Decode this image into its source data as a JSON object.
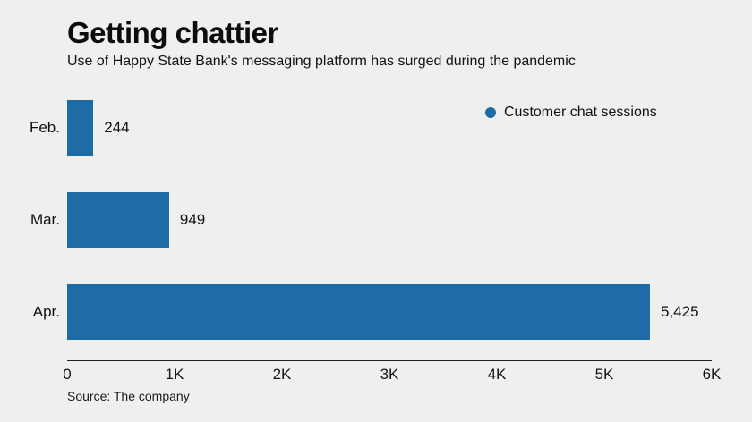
{
  "header": {
    "title": "Getting chattier",
    "subtitle": "Use of Happy State Bank's messaging platform has surged during the pandemic"
  },
  "legend": {
    "label": "Customer chat sessions",
    "marker_color": "#1e6ba6"
  },
  "source_note": "Source: The company",
  "colors": {
    "bar": "#1e6ba6",
    "background": "#eef0ee",
    "text": "#111111",
    "axis": "#222222"
  },
  "chart_data": {
    "type": "bar",
    "orientation": "horizontal",
    "title": "Getting chattier",
    "subtitle": "Use of Happy State Bank's messaging platform has surged during the pandemic",
    "series_name": "Customer chat sessions",
    "categories": [
      "Feb.",
      "Mar.",
      "Apr."
    ],
    "values": [
      244,
      949,
      5425
    ],
    "value_labels": [
      "244",
      "949",
      "5,425"
    ],
    "xlabel": "",
    "ylabel": "",
    "xlim": [
      0,
      6000
    ],
    "x_ticks": [
      0,
      1000,
      2000,
      3000,
      4000,
      5000,
      6000
    ],
    "x_tick_labels": [
      "0",
      "1K",
      "2K",
      "3K",
      "4K",
      "5K",
      "6K"
    ],
    "grid": false,
    "legend_position": "top-right",
    "bar_color": "#1e6ba6",
    "background_color": "#eef0ee",
    "source": "Source: The company"
  }
}
